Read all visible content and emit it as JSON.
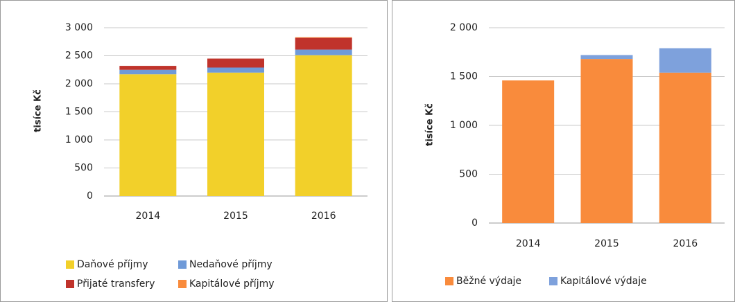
{
  "chart_data": [
    {
      "type": "bar",
      "stacked": true,
      "ylabel": "tisíce Kč",
      "categories": [
        "2014",
        "2015",
        "2016"
      ],
      "series": [
        {
          "name": "Daňové příjmy",
          "color": "#f2d02a",
          "values": [
            2170,
            2200,
            2510
          ]
        },
        {
          "name": "Nedaňové příjmy",
          "color": "#6f9ad8",
          "values": [
            80,
            90,
            100
          ]
        },
        {
          "name": "Přijaté transfery",
          "color": "#c0332b",
          "values": [
            70,
            160,
            210
          ]
        },
        {
          "name": "Kapitálové příjmy",
          "color": "#f98b3c",
          "values": [
            0,
            0,
            10
          ]
        }
      ],
      "ylim": [
        0,
        3000
      ],
      "yticks": [
        0,
        500,
        {
          "value": 1000,
          "label": "1 000"
        },
        {
          "value": 1500,
          "label": "1 500"
        },
        {
          "value": 2000,
          "label": "2 000"
        },
        {
          "value": 2500,
          "label": "2 500"
        },
        {
          "value": 3000,
          "label": "3 000"
        }
      ],
      "grid": true,
      "legend": "bottom"
    },
    {
      "type": "bar",
      "stacked": true,
      "ylabel": "tisíce Kč",
      "categories": [
        "2014",
        "2015",
        "2016"
      ],
      "series": [
        {
          "name": "Běžné výdaje",
          "color": "#f98b3c",
          "values": [
            1460,
            1680,
            1540
          ]
        },
        {
          "name": "Kapitálové výdaje",
          "color": "#7ea1dc",
          "values": [
            0,
            40,
            250
          ]
        }
      ],
      "ylim": [
        0,
        2000
      ],
      "yticks": [
        0,
        500,
        {
          "value": 1000,
          "label": "1 000"
        },
        {
          "value": 1500,
          "label": "1 500"
        },
        {
          "value": 2000,
          "label": "2 000"
        }
      ],
      "grid": true,
      "legend": "bottom"
    }
  ]
}
